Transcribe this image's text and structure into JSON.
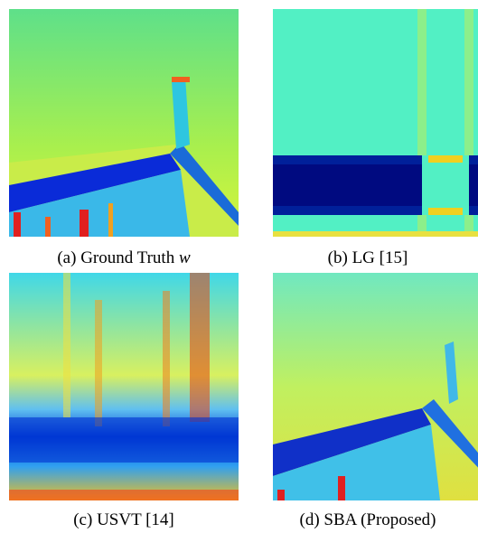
{
  "figure": {
    "panels": [
      {
        "caption": "(a) Ground Truth",
        "symbol": "w"
      },
      {
        "caption": "(b) LG [15]"
      },
      {
        "caption": "(c) USVT [14]"
      },
      {
        "caption": "(d) SBA (Proposed)"
      }
    ]
  }
}
